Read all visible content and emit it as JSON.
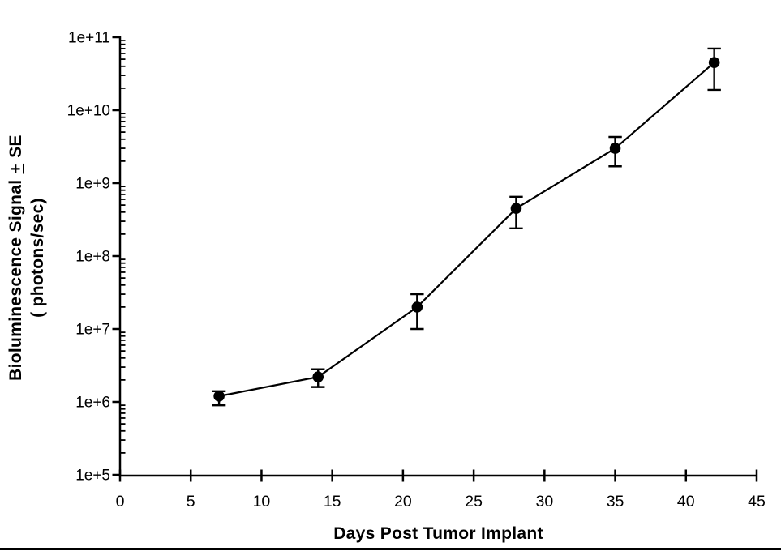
{
  "figure": {
    "background_color": "#ffffff",
    "ink_color": "#000000",
    "x_title": "Days Post Tumor Implant",
    "y_title": {
      "line1_prefix": "Bioluminescence Signal ",
      "plus_sign": "+",
      "line1_suffix": " SE",
      "line2": "( photons/sec)"
    }
  },
  "chart_data": {
    "type": "line",
    "title": "",
    "xlabel": "Days Post Tumor Implant",
    "ylabel": "Bioluminescence Signal ± SE ( photons/sec)",
    "x": [
      7,
      14,
      21,
      28,
      35,
      42
    ],
    "series": [
      {
        "name": "Bioluminescence signal",
        "values": [
          1200000.0,
          2200000.0,
          20000000.0,
          450000000.0,
          3000000000.0,
          45000000000.0
        ],
        "error_upper_values": [
          1400000.0,
          2800000.0,
          30000000.0,
          650000000.0,
          4300000000.0,
          70000000000.0
        ],
        "error_lower_values": [
          900000.0,
          1600000.0,
          10000000.0,
          240000000.0,
          1700000000.0,
          19000000000.0
        ],
        "marker": "filled-circle",
        "line_style": "solid"
      }
    ],
    "x_ticks": [
      "0",
      "5",
      "10",
      "15",
      "20",
      "25",
      "30",
      "35",
      "40",
      "45"
    ],
    "y_ticks": [
      "1e+5",
      "1e+6",
      "1e+7",
      "1e+8",
      "1e+9",
      "1e+10",
      "1e+11"
    ],
    "xlim": [
      0,
      45
    ],
    "ylim_log10": [
      5,
      11
    ],
    "y_scale": "log",
    "y_minor_ticks": "log-decade-2-to-9",
    "grid": false,
    "legend": null
  }
}
